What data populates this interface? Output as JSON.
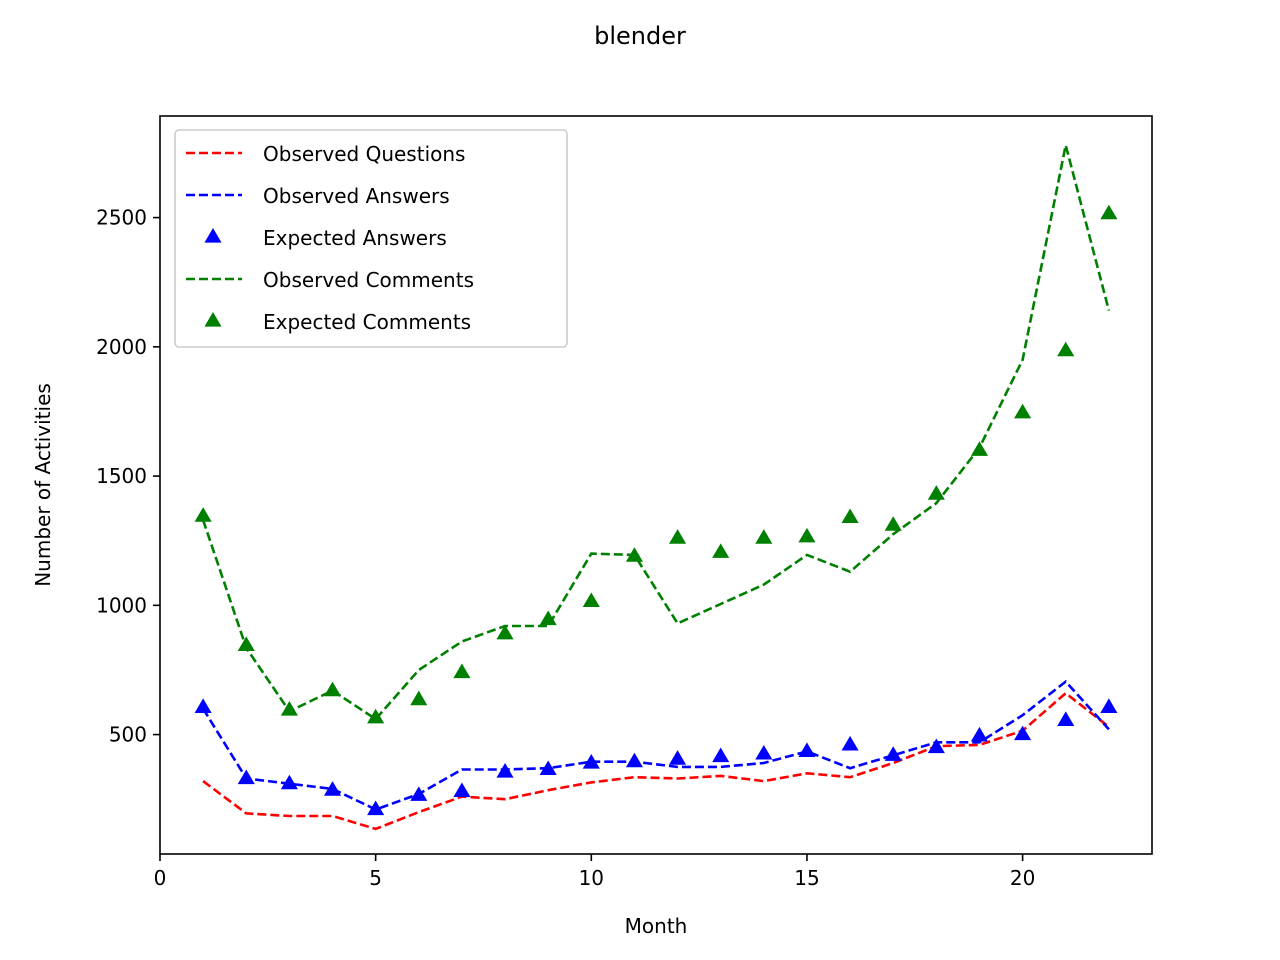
{
  "chart_data": {
    "type": "line",
    "title": "blender",
    "xlabel": "Month",
    "ylabel": "Number of Activities",
    "xlim": [
      0,
      23
    ],
    "ylim": [
      38,
      2893
    ],
    "xticks": [
      0,
      5,
      10,
      15,
      20
    ],
    "yticks": [
      500,
      1000,
      1500,
      2000,
      2500
    ],
    "grid": false,
    "legend_position": "upper-left",
    "x": [
      1,
      2,
      3,
      4,
      5,
      6,
      7,
      8,
      9,
      10,
      11,
      12,
      13,
      14,
      15,
      16,
      17,
      18,
      19,
      20,
      21,
      22
    ],
    "series": [
      {
        "name": "Observed Questions",
        "style": "dashed-line",
        "color": "#ff0000",
        "values": [
          320,
          195,
          185,
          185,
          135,
          200,
          260,
          250,
          285,
          315,
          335,
          330,
          340,
          320,
          350,
          335,
          390,
          455,
          460,
          515,
          660,
          530
        ]
      },
      {
        "name": "Observed Answers",
        "style": "dashed-line",
        "color": "#0000ff",
        "values": [
          600,
          330,
          310,
          290,
          210,
          270,
          365,
          365,
          370,
          395,
          395,
          375,
          375,
          390,
          435,
          370,
          420,
          470,
          470,
          575,
          705,
          520
        ]
      },
      {
        "name": "Expected Answers",
        "style": "triangle-markers",
        "color": "#0000ff",
        "values": [
          605,
          330,
          310,
          285,
          210,
          265,
          280,
          355,
          365,
          390,
          395,
          405,
          415,
          425,
          435,
          460,
          420,
          450,
          495,
          500,
          555,
          605
        ]
      },
      {
        "name": "Observed Comments",
        "style": "dashed-line",
        "color": "#008000",
        "values": [
          1330,
          835,
          590,
          670,
          560,
          750,
          860,
          920,
          920,
          1200,
          1195,
          930,
          1005,
          1080,
          1195,
          1130,
          1275,
          1395,
          1610,
          1950,
          2780,
          2140
        ]
      },
      {
        "name": "Expected Comments",
        "style": "triangle-markers",
        "color": "#008000",
        "values": [
          1345,
          845,
          595,
          670,
          565,
          635,
          740,
          890,
          945,
          1015,
          1190,
          1260,
          1205,
          1260,
          1265,
          1340,
          1310,
          1430,
          1600,
          1745,
          1985,
          2515
        ]
      }
    ]
  }
}
